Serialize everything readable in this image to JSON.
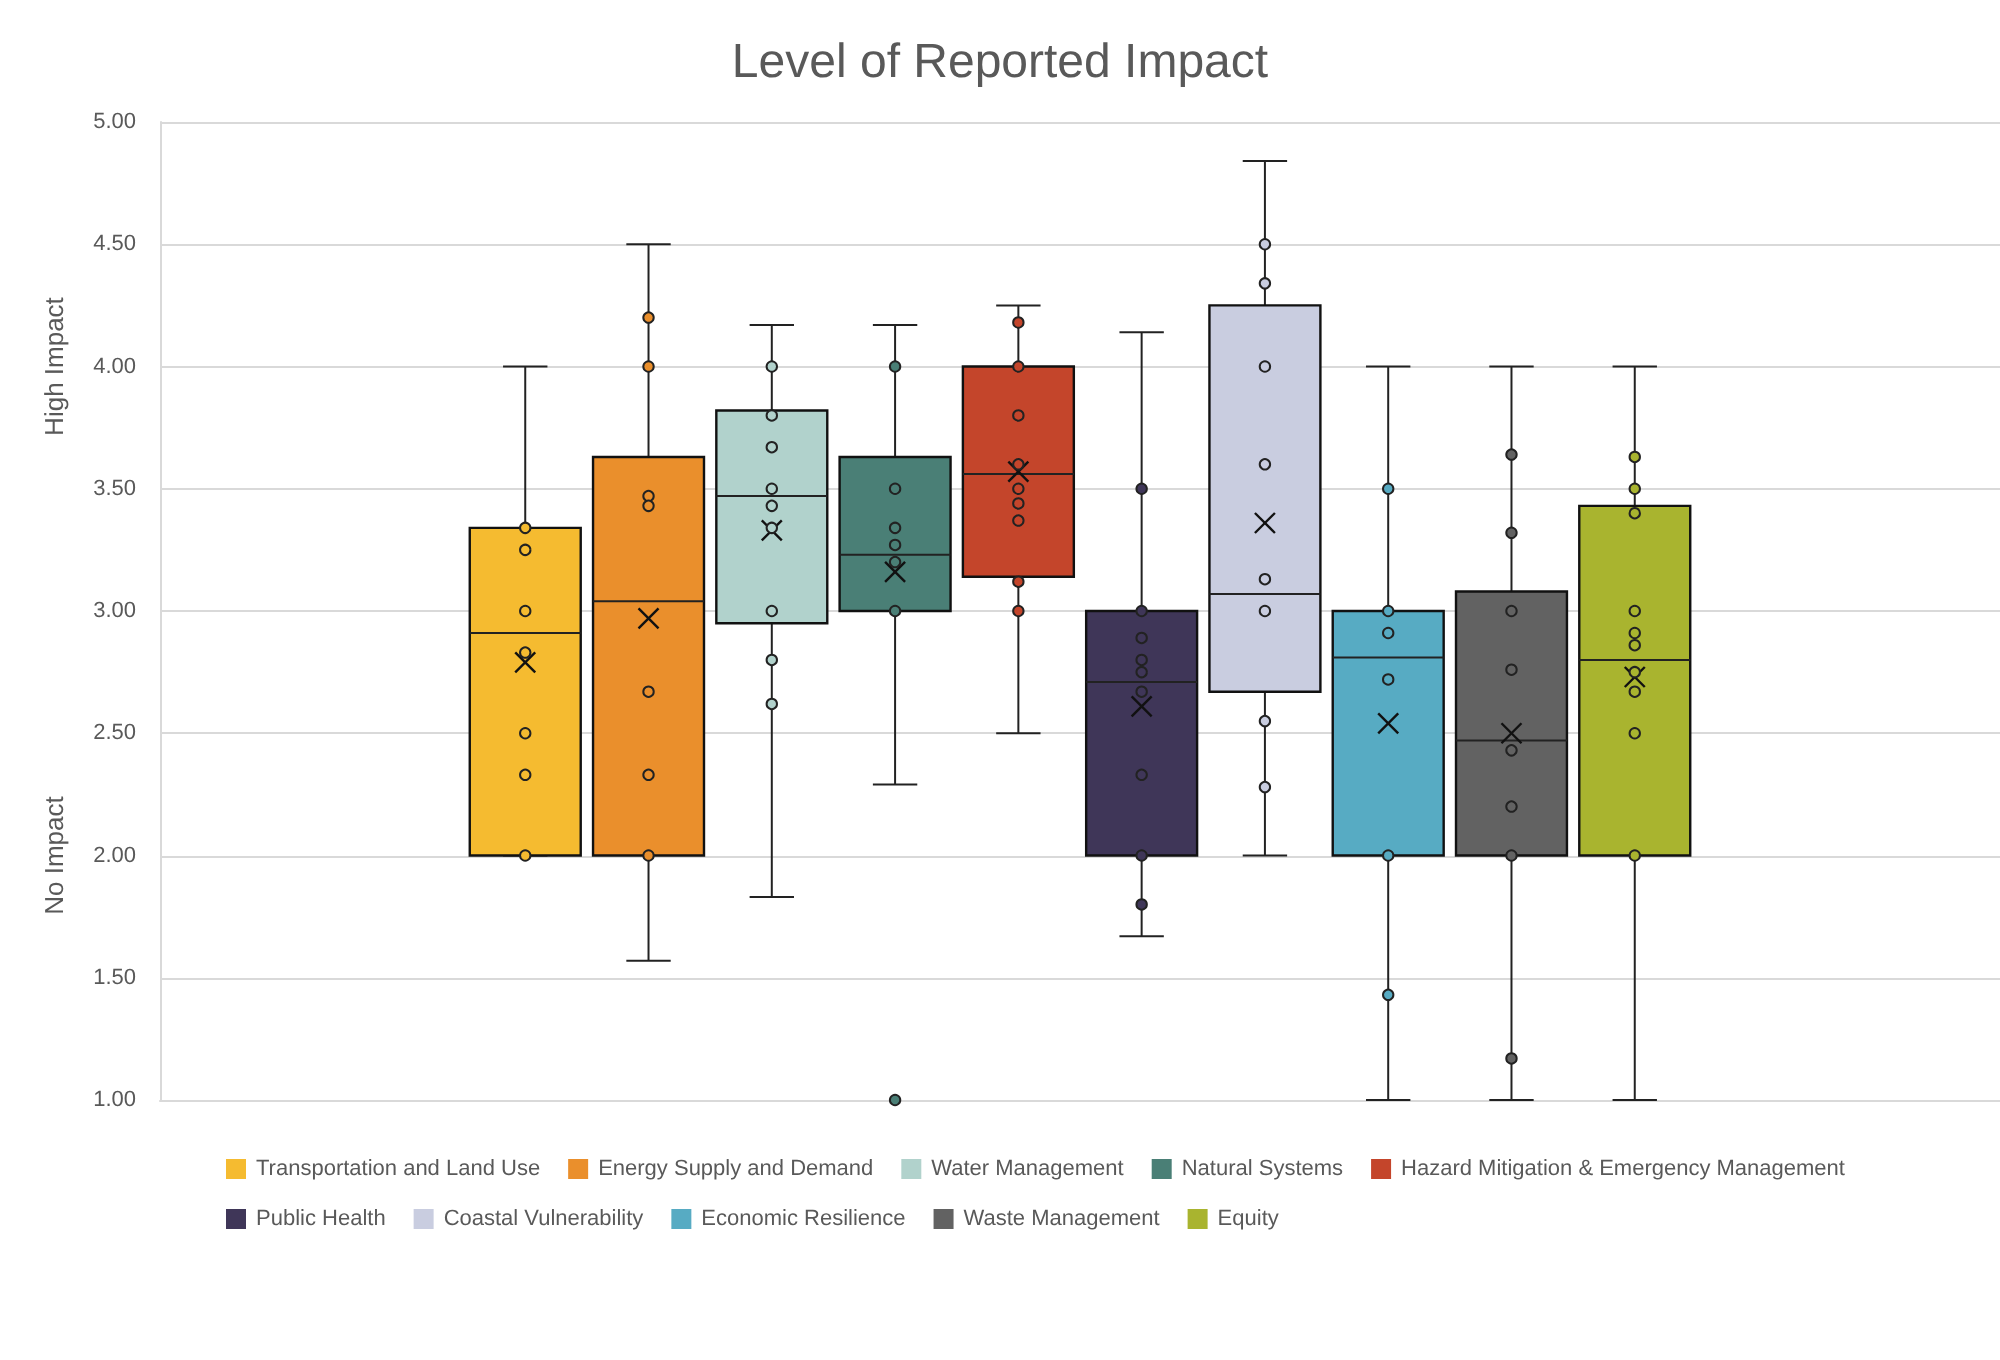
{
  "chart_data": {
    "type": "box",
    "title": "Level of Reported Impact",
    "categories": [
      null
    ],
    "ylim": [
      1,
      5
    ],
    "yticks": [
      {
        "value": 1,
        "label": "1.00"
      },
      {
        "value": 1.5,
        "label": "1.50"
      },
      {
        "value": 2,
        "label": "2.00"
      },
      {
        "value": 2.5,
        "label": "2.50"
      },
      {
        "value": 3,
        "label": "3.00"
      },
      {
        "value": 3.5,
        "label": "3.50"
      },
      {
        "value": 4,
        "label": "4.00"
      },
      {
        "value": 4.5,
        "label": "4.50"
      },
      {
        "value": 5,
        "label": "5.00"
      }
    ],
    "grid": "y",
    "legend": "bottom",
    "tick_labels": "y",
    "marker": "circle",
    "annotations": [
      "High Impact",
      "No Impact"
    ],
    "series": [
      {
        "name": "Transportation and Land Use",
        "color": "#f5bb30",
        "boxes": [
          {
            "low": 2,
            "q1": 2,
            "median": 2.91,
            "q3": 3.34,
            "high": 4,
            "mean": 2.79
          }
        ]
      },
      {
        "name": "Energy Supply and Demand",
        "color": "#ea8f2c",
        "boxes": [
          {
            "low": 1.57,
            "q1": 2,
            "median": 3.04,
            "q3": 3.63,
            "high": 4.5,
            "mean": 2.97
          }
        ]
      },
      {
        "name": "Water Management",
        "color": "#b1d2cc",
        "boxes": [
          {
            "low": 1.83,
            "q1": 2.95,
            "median": 3.47,
            "q3": 3.82,
            "high": 4.17,
            "mean": 3.33
          }
        ]
      },
      {
        "name": "Natural Systems",
        "color": "#4a7f76",
        "boxes": [
          {
            "low": 2.29,
            "q1": 3,
            "median": 3.23,
            "q3": 3.63,
            "high": 4.17,
            "mean": 3.16,
            "outliers": [
              1
            ]
          }
        ]
      },
      {
        "name": "Hazard Mitigation & Emergency Management",
        "color": "#c4452b",
        "boxes": [
          {
            "low": 2.5,
            "q1": 3.14,
            "median": 3.56,
            "q3": 4,
            "high": 4.25,
            "mean": 3.57
          }
        ]
      },
      {
        "name": "Public Health",
        "color": "#3f3658",
        "boxes": [
          {
            "low": 1.67,
            "q1": 2,
            "median": 2.71,
            "q3": 3,
            "high": 4.14,
            "mean": 2.61
          }
        ]
      },
      {
        "name": "Coastal Vulnerability",
        "color": "#c9cde0",
        "boxes": [
          {
            "low": 2,
            "q1": 2.67,
            "median": 3.07,
            "q3": 4.25,
            "high": 4.84,
            "mean": 3.36
          }
        ]
      },
      {
        "name": "Economic Resilience",
        "color": "#57abc3",
        "boxes": [
          {
            "low": 1,
            "q1": 2,
            "median": 2.81,
            "q3": 3,
            "high": 4,
            "mean": 2.54
          }
        ]
      },
      {
        "name": "Waste Management",
        "color": "#626262",
        "boxes": [
          {
            "low": 1,
            "q1": 2,
            "median": 2.47,
            "q3": 3.08,
            "high": 4,
            "mean": 2.5
          }
        ]
      },
      {
        "name": "Equity",
        "color": "#a9b42f",
        "boxes": [
          {
            "low": 1,
            "q1": 2,
            "median": 2.8,
            "q3": 3.43,
            "high": 4,
            "mean": 2.73
          }
        ]
      },
      {
        "type": "scatter",
        "color": "#f5bb30",
        "x": [
          null,
          null,
          null,
          null,
          null,
          null,
          null
        ],
        "values": [
          3.34,
          3.25,
          3,
          2.83,
          2.5,
          2.33,
          2
        ]
      },
      {
        "type": "scatter",
        "color": "#ea8f2c",
        "x": [
          null,
          null,
          null,
          null,
          null,
          null,
          null
        ],
        "values": [
          4.2,
          4,
          3.47,
          3.43,
          2.67,
          2.33,
          2
        ]
      },
      {
        "type": "scatter",
        "color": "#b1d2cc",
        "x": [
          null,
          null,
          null,
          null,
          null,
          null,
          null,
          null,
          null
        ],
        "values": [
          4,
          3.8,
          3.67,
          3.5,
          3.43,
          3.34,
          3,
          2.8,
          2.62
        ]
      },
      {
        "type": "scatter",
        "color": "#4a7f76",
        "x": [
          null,
          null,
          null,
          null,
          null,
          null
        ],
        "values": [
          4,
          3.5,
          3.34,
          3.27,
          3.2,
          3
        ]
      },
      {
        "type": "scatter",
        "color": "#c4452b",
        "x": [
          null,
          null,
          null,
          null,
          null,
          null,
          null,
          null,
          null
        ],
        "values": [
          4.18,
          4,
          3.8,
          3.6,
          3.5,
          3.44,
          3.37,
          3.12,
          3
        ]
      },
      {
        "type": "scatter",
        "color": "#3f3658",
        "x": [
          null,
          null,
          null,
          null,
          null,
          null,
          null,
          null,
          null
        ],
        "values": [
          3.5,
          3,
          2.89,
          2.8,
          2.75,
          2.67,
          2.33,
          2,
          1.8
        ]
      },
      {
        "type": "scatter",
        "color": "#c9cde0",
        "x": [
          null,
          null,
          null,
          null,
          null,
          null,
          null,
          null
        ],
        "values": [
          4.5,
          4.34,
          4,
          3.6,
          3.13,
          3,
          2.55,
          2.28
        ]
      },
      {
        "type": "scatter",
        "color": "#57abc3",
        "x": [
          null,
          null,
          null,
          null,
          null,
          null
        ],
        "values": [
          3.5,
          3,
          2.91,
          2.72,
          2,
          1.43
        ]
      },
      {
        "type": "scatter",
        "color": "#626262",
        "x": [
          null,
          null,
          null,
          null,
          null,
          null,
          null,
          null
        ],
        "values": [
          3.64,
          3.32,
          3,
          2.76,
          2.43,
          2.2,
          2,
          1.17
        ]
      },
      {
        "type": "scatter",
        "color": "#a9b42f",
        "x": [
          null,
          null,
          null,
          null,
          null,
          null,
          null,
          null,
          null,
          null
        ],
        "values": [
          3.63,
          3.5,
          3.4,
          3,
          2.91,
          2.86,
          2.75,
          2.67,
          2.5,
          2
        ]
      }
    ]
  }
}
